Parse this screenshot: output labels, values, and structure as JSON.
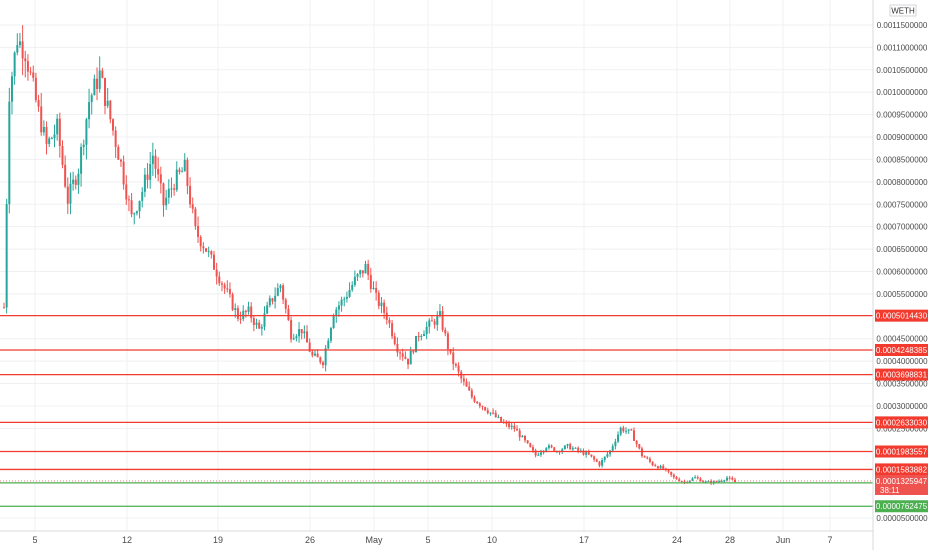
{
  "symbol": "WETH",
  "colors": {
    "up": "#26a69a",
    "down": "#ef5350",
    "grid": "#eef0f3",
    "level_red": "#f23a2e",
    "level_green": "#4caf50",
    "axis_text": "#4a4a4a"
  },
  "price_labels": {
    "current": "0.0001325947",
    "countdown": "38:11"
  },
  "chart_data": {
    "type": "candlestick",
    "ylim": [
      5e-05,
      0.00117
    ],
    "y_ticks": [
      "0.0011500000",
      "0.0011000000",
      "0.0010500000",
      "0.0010000000",
      "0.0009500000",
      "0.0009000000",
      "0.0008500000",
      "0.0008000000",
      "0.0007500000",
      "0.0007000000",
      "0.0006500000",
      "0.0006000000",
      "0.0005500000",
      "0.0004500000",
      "0.0004000000",
      "0.0003500000",
      "0.0003000000",
      "0.0002500000",
      "0.0000500000"
    ],
    "x_ticks": [
      "5",
      "12",
      "19",
      "26",
      "May",
      "5",
      "10",
      "17",
      "24",
      "28",
      "Jun",
      "7"
    ],
    "levels": [
      {
        "value": "0.0005014430",
        "color": "red"
      },
      {
        "value": "0.0004248385",
        "color": "red"
      },
      {
        "value": "0.0003698831",
        "color": "red"
      },
      {
        "value": "0.0002633030",
        "color": "red"
      },
      {
        "value": "0.0001983557",
        "color": "red"
      },
      {
        "value": "0.0001583882",
        "color": "red"
      },
      {
        "value": "0.0001284125",
        "color": "green"
      },
      {
        "value": "0.0000762475",
        "color": "green"
      }
    ],
    "path": [
      [
        0,
        0.00052
      ],
      [
        2,
        0.001
      ],
      [
        5,
        0.00112
      ],
      [
        8,
        0.00109
      ],
      [
        12,
        0.00098
      ],
      [
        16,
        0.00088
      ],
      [
        20,
        0.00092
      ],
      [
        24,
        0.00076
      ],
      [
        28,
        0.00083
      ],
      [
        32,
        0.00098
      ],
      [
        36,
        0.00104
      ],
      [
        40,
        0.00094
      ],
      [
        44,
        0.00084
      ],
      [
        48,
        0.00072
      ],
      [
        52,
        0.00078
      ],
      [
        56,
        0.00086
      ],
      [
        60,
        0.00075
      ],
      [
        64,
        0.0008
      ],
      [
        68,
        0.00083
      ],
      [
        72,
        0.00069
      ],
      [
        76,
        0.00065
      ],
      [
        80,
        0.0006
      ],
      [
        84,
        0.00055
      ],
      [
        88,
        0.0005
      ],
      [
        92,
        0.00051
      ],
      [
        96,
        0.00047
      ],
      [
        100,
        0.00053
      ],
      [
        104,
        0.00057
      ],
      [
        108,
        0.00046
      ],
      [
        112,
        0.00047
      ],
      [
        116,
        0.00041
      ],
      [
        120,
        0.0004
      ],
      [
        124,
        0.00051
      ],
      [
        128,
        0.00054
      ],
      [
        132,
        0.00058
      ],
      [
        136,
        0.00061
      ],
      [
        140,
        0.00054
      ],
      [
        144,
        0.0005
      ],
      [
        148,
        0.00043
      ],
      [
        152,
        0.0004
      ],
      [
        156,
        0.00046
      ],
      [
        160,
        0.00048
      ],
      [
        164,
        0.0005
      ],
      [
        168,
        0.00041
      ],
      [
        172,
        0.00036
      ],
      [
        176,
        0.00032
      ],
      [
        180,
        0.0003
      ],
      [
        184,
        0.00028
      ],
      [
        188,
        0.00026
      ],
      [
        192,
        0.00025
      ],
      [
        196,
        0.00022
      ],
      [
        200,
        0.00019
      ],
      [
        204,
        0.00021
      ],
      [
        208,
        0.0002
      ],
      [
        212,
        0.00021
      ],
      [
        216,
        0.0002
      ],
      [
        220,
        0.00019
      ],
      [
        224,
        0.00017
      ],
      [
        228,
        0.0002
      ],
      [
        232,
        0.00025
      ],
      [
        236,
        0.00024
      ],
      [
        240,
        0.00019
      ],
      [
        244,
        0.00017
      ],
      [
        248,
        0.00016
      ],
      [
        252,
        0.00014
      ],
      [
        256,
        0.00013
      ],
      [
        260,
        0.00014
      ],
      [
        264,
        0.00013
      ],
      [
        268,
        0.00013
      ],
      [
        272,
        0.00014
      ],
      [
        275,
        0.00013
      ]
    ]
  }
}
